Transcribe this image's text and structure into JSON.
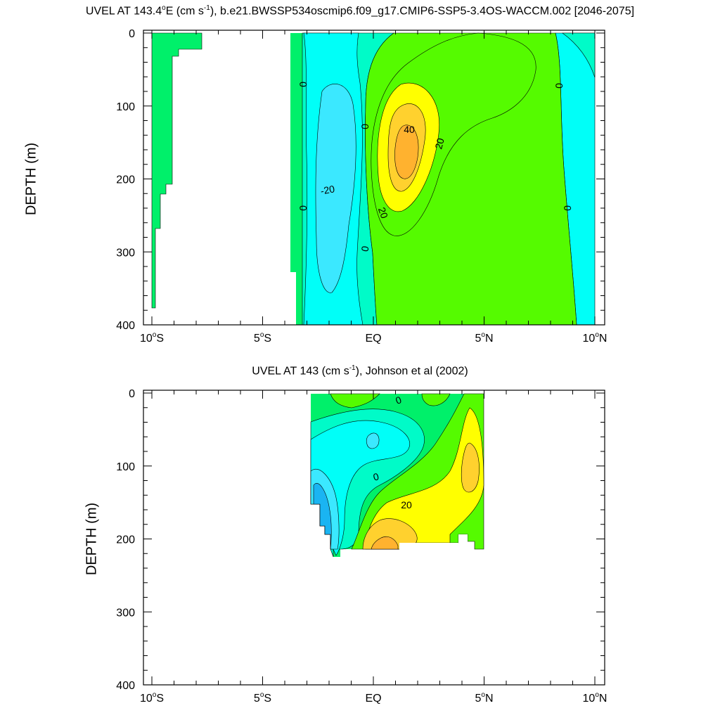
{
  "chart_data": [
    {
      "type": "contour",
      "title_prefix": "UVEL AT 143.4",
      "title_sup_deg": "o",
      "title_after_deg": "E (cm s",
      "title_sup_unit": "-1",
      "title_suffix": "), b.e21.BWSSP534oscmip6.f09_g17.CMIP6-SSP5-3.4OS-WACCM.002 [2046-2075]",
      "ylabel": "DEPTH (m)",
      "xlabel": "",
      "x_range": [
        -10,
        10
      ],
      "y_range": [
        0,
        400
      ],
      "y_inverted": true,
      "xticks": [
        {
          "value": -10,
          "deg": "10",
          "hemi": "S"
        },
        {
          "value": -5,
          "deg": "5",
          "hemi": "S"
        },
        {
          "value": 0,
          "deg": "",
          "hemi": "EQ"
        },
        {
          "value": 5,
          "deg": "5",
          "hemi": "N"
        },
        {
          "value": 10,
          "deg": "10",
          "hemi": "N"
        }
      ],
      "yticks": [
        "0",
        "100",
        "200",
        "300",
        "400"
      ],
      "contour_levels": [
        -40,
        -30,
        -20,
        -10,
        0,
        10,
        20,
        30,
        40,
        50
      ],
      "contour_labels": [
        {
          "text": "0",
          "x": -3.2,
          "depth": 70
        },
        {
          "text": "0",
          "x": -0.4,
          "depth": 128
        },
        {
          "text": "40",
          "x": 1.6,
          "depth": 132
        },
        {
          "text": "20",
          "x": 3.0,
          "depth": 155
        },
        {
          "text": "-20",
          "x": -2.2,
          "depth": 212
        },
        {
          "text": "0",
          "x": -3.2,
          "depth": 240
        },
        {
          "text": "20",
          "x": 0.4,
          "depth": 238
        },
        {
          "text": "0",
          "x": 8.8,
          "depth": 72
        },
        {
          "text": "0",
          "x": 9.0,
          "depth": 240
        },
        {
          "text": "0",
          "x": -0.4,
          "depth": 292
        }
      ],
      "features": [
        {
          "name": "eastward core max",
          "value": 40,
          "x": 1.5,
          "depth": 160
        },
        {
          "name": "westward minimum",
          "value": -20,
          "x": -2.5,
          "depth": 150
        }
      ]
    },
    {
      "type": "contour",
      "title_prefix": "UVEL AT 143 (cm s",
      "title_sup_unit": "-1",
      "title_suffix": "), Johnson et al (2002)",
      "ylabel": "DEPTH (m)",
      "xlabel": "",
      "x_range": [
        -10,
        10
      ],
      "y_range": [
        0,
        400
      ],
      "y_inverted": true,
      "data_x_range": [
        -2.8,
        5
      ],
      "data_y_range": [
        0,
        225
      ],
      "xticks": [
        {
          "value": -10,
          "deg": "10",
          "hemi": "S"
        },
        {
          "value": -5,
          "deg": "5",
          "hemi": "S"
        },
        {
          "value": 0,
          "deg": "",
          "hemi": "EQ"
        },
        {
          "value": 5,
          "deg": "5",
          "hemi": "N"
        },
        {
          "value": 10,
          "deg": "10",
          "hemi": "N"
        }
      ],
      "yticks": [
        "0",
        "100",
        "200",
        "300",
        "400"
      ],
      "contour_labels": [
        {
          "text": "0",
          "x": 1.1,
          "depth": 12
        },
        {
          "text": "0",
          "x": 0.1,
          "depth": 118
        },
        {
          "text": "20",
          "x": 1.5,
          "depth": 155
        }
      ],
      "features": [
        {
          "name": "eastward core max",
          "value": 40,
          "x": 1.2,
          "depth": 205
        },
        {
          "name": "westward minimum",
          "value": -40,
          "x": -2.5,
          "depth": 165
        }
      ]
    }
  ],
  "colors": {
    "green_dark": "#00f06a",
    "green_light": "#55fb00",
    "lime": "#a9fc00",
    "yellow": "#ffff00",
    "gold": "#ffd12e",
    "orange": "#ffb22f",
    "aqua_green": "#00fbc8",
    "cyan": "#00fff8",
    "sky": "#3be8ff",
    "blue": "#1ab4f2",
    "deep_blue": "#0b8ee9"
  }
}
